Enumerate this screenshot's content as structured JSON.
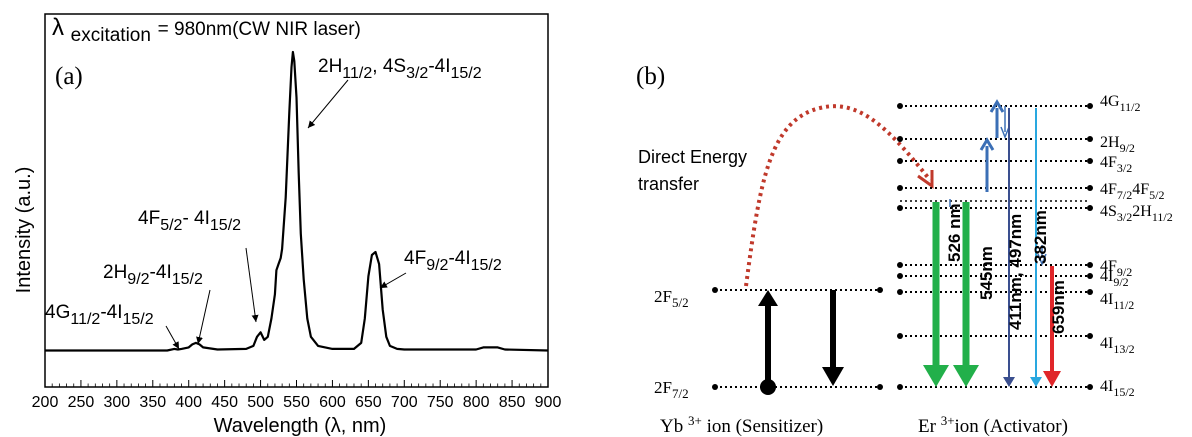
{
  "panel_a": {
    "excitation": {
      "symbol": "λ",
      "sub": "excitation",
      "text": "= 980nm(CW NIR laser)"
    },
    "panel_label": "(a)"
  },
  "panel_b": {
    "panel_label": "(b)",
    "transfer_label": [
      "Direct Energy",
      "transfer"
    ],
    "yb_levels": [
      {
        "base": "2F",
        "sub": "5/2"
      },
      {
        "base": "2F",
        "sub": "7/2"
      }
    ],
    "er_levels": [
      {
        "base": "4G",
        "sub": "11/2"
      },
      {
        "base": "2H",
        "sub": "9/2"
      },
      {
        "base": "4F",
        "sub": "3/2"
      },
      {
        "base": "4F",
        "sub": "7/2",
        "base2": "4F",
        "sub2": "5/2"
      },
      {
        "base": "4S",
        "sub": "3/2",
        "base2": "2H",
        "sub2": "11/2"
      },
      {
        "base": "4F",
        "sub": "9/2"
      },
      {
        "base": "4I",
        "sub": "9/2"
      },
      {
        "base": "4I",
        "sub": "11/2"
      },
      {
        "base": "4I",
        "sub": "13/2"
      },
      {
        "base": "4I",
        "sub": "15/2"
      }
    ],
    "emission_labels": [
      "526 nm",
      "545nm",
      "411nm, 497nm",
      "382nm",
      "659nm"
    ],
    "emission_colors": [
      "#22b04a",
      "#22b04a",
      "#3a4f8f",
      "#29a8e0",
      "#e0262a"
    ],
    "yb_caption": {
      "pre": "Yb ",
      "sup": "3+",
      "post": " ion (Sensitizer)"
    },
    "er_caption": {
      "pre": "Er ",
      "sup": "3+",
      "post": "ion (Activator)"
    }
  },
  "chart_data": {
    "type": "line",
    "title": "",
    "xlabel": "Wavelength (λ, nm)",
    "ylabel": "Intensity  (a.u.)",
    "xlim": [
      200,
      900
    ],
    "ylim": [
      0,
      1
    ],
    "xticks": [
      200,
      250,
      300,
      350,
      400,
      450,
      500,
      550,
      600,
      650,
      700,
      750,
      800,
      850,
      900
    ],
    "series": [
      {
        "x": [
          200,
          300,
          370,
          380,
          385,
          390,
          400,
          405,
          410,
          415,
          420,
          440,
          480,
          490,
          495,
          500,
          505,
          510,
          515,
          520,
          522,
          525,
          528,
          530,
          535,
          540,
          543,
          545,
          547,
          550,
          553,
          556,
          560,
          565,
          570,
          580,
          600,
          630,
          640,
          645,
          650,
          655,
          660,
          665,
          670,
          675,
          680,
          690,
          700,
          800,
          810,
          830,
          840,
          900
        ],
        "y": [
          0.015,
          0.015,
          0.015,
          0.02,
          0.018,
          0.02,
          0.025,
          0.035,
          0.04,
          0.035,
          0.025,
          0.018,
          0.02,
          0.03,
          0.06,
          0.075,
          0.05,
          0.06,
          0.12,
          0.2,
          0.28,
          0.3,
          0.32,
          0.35,
          0.52,
          0.8,
          0.95,
          1.0,
          0.97,
          0.85,
          0.6,
          0.4,
          0.25,
          0.12,
          0.06,
          0.03,
          0.02,
          0.02,
          0.04,
          0.12,
          0.26,
          0.33,
          0.34,
          0.3,
          0.15,
          0.06,
          0.03,
          0.02,
          0.018,
          0.018,
          0.025,
          0.025,
          0.018,
          0.015
        ]
      }
    ],
    "annotations": [
      {
        "base": "2H",
        "sub": "11/2",
        "sep": ", ",
        "base2": "4S",
        "sub2": "3/2",
        "mid": "-4I",
        "sub3": "15/2"
      },
      {
        "base": "4F",
        "sub": "5/2",
        "mid": "- 4I",
        "sub3": "15/2"
      },
      {
        "base": "4F",
        "sub": "9/2",
        "mid": "-4I",
        "sub3": "15/2"
      },
      {
        "base": "2H",
        "sub": "9/2",
        "mid": "-4I",
        "sub3": "15/2"
      },
      {
        "base": "4G",
        "sub": "11/2",
        "mid": "-4I",
        "sub3": "15/2"
      }
    ]
  }
}
